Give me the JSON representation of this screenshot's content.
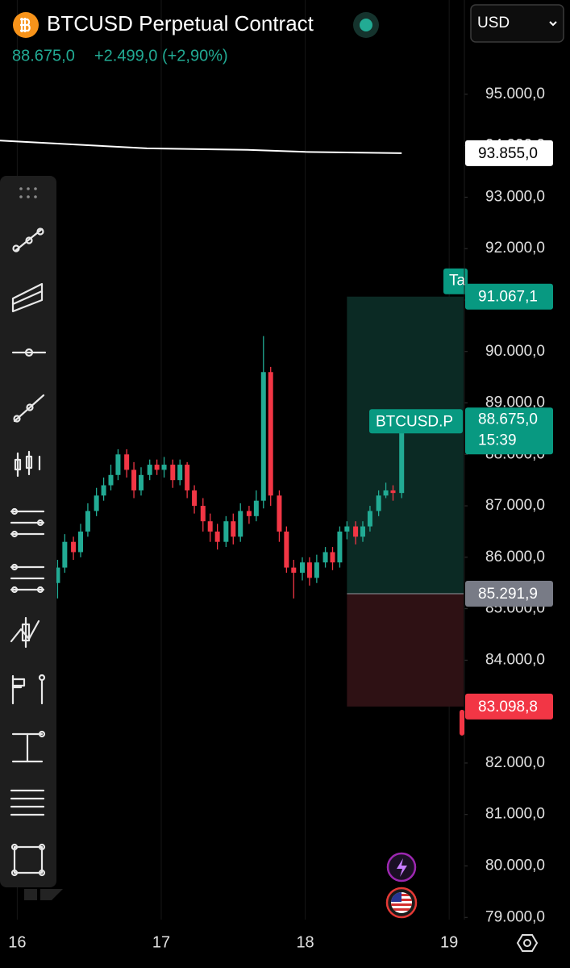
{
  "header": {
    "title": "BTCUSD Perpetual Contract",
    "price": "88.675,0",
    "change": "+2.499,0 (+2,90%)",
    "currency": "USD"
  },
  "chart_data": {
    "type": "candlestick",
    "up_color": "#22ab94",
    "down_color": "#f23645",
    "x": [
      16.28,
      16.33,
      16.39,
      16.44,
      16.49,
      16.55,
      16.6,
      16.65,
      16.7,
      16.76,
      16.81,
      16.86,
      16.92,
      16.97,
      17.02,
      17.08,
      17.13,
      17.18,
      17.23,
      17.29,
      17.34,
      17.39,
      17.45,
      17.5,
      17.55,
      17.61,
      17.66,
      17.71,
      17.76,
      17.82,
      17.87,
      17.92,
      17.98,
      18.03,
      18.08,
      18.14,
      18.19,
      18.24,
      18.29,
      18.35,
      18.4,
      18.45,
      18.51,
      18.56,
      18.61,
      18.67
    ],
    "open": [
      85500,
      85800,
      86300,
      86100,
      86500,
      86900,
      87200,
      87400,
      87600,
      88000,
      87700,
      87300,
      87600,
      87800,
      87700,
      87800,
      87500,
      87800,
      87300,
      87000,
      86700,
      86500,
      86300,
      86700,
      86400,
      86900,
      86800,
      87100,
      89600,
      87200,
      86500,
      85800,
      85700,
      85900,
      85600,
      85900,
      86100,
      85900,
      86500,
      86600,
      86400,
      86600,
      86900,
      87200,
      87300,
      87250
    ],
    "high": [
      85950,
      86450,
      86400,
      86650,
      87050,
      87350,
      87550,
      87800,
      88100,
      88100,
      87850,
      87750,
      87900,
      87900,
      87950,
      87900,
      87900,
      87850,
      87400,
      87150,
      86850,
      86650,
      86800,
      86850,
      87050,
      87000,
      87300,
      90300,
      89700,
      87300,
      86600,
      85950,
      86000,
      86000,
      86050,
      86200,
      86200,
      86600,
      86700,
      86700,
      86700,
      87000,
      87300,
      87450,
      87400,
      88700
    ],
    "low": [
      85200,
      85700,
      85950,
      86000,
      86400,
      86800,
      87100,
      87300,
      87500,
      87550,
      87150,
      87200,
      87500,
      87600,
      87550,
      87350,
      87400,
      87150,
      86850,
      86500,
      86300,
      86150,
      86200,
      86250,
      86300,
      86650,
      86700,
      86950,
      87000,
      86300,
      85700,
      85200,
      85550,
      85450,
      85500,
      85800,
      85750,
      85800,
      86350,
      86250,
      86300,
      86500,
      86800,
      87150,
      87100,
      87150
    ],
    "close": [
      85800,
      86300,
      86100,
      86500,
      86900,
      87200,
      87400,
      87600,
      88000,
      87700,
      87300,
      87600,
      87800,
      87700,
      87800,
      87500,
      87800,
      87300,
      87000,
      86700,
      86500,
      86300,
      86700,
      86400,
      86900,
      86800,
      87100,
      89600,
      87200,
      86500,
      85800,
      85700,
      85900,
      85600,
      85900,
      86100,
      85900,
      86500,
      86600,
      86400,
      86600,
      86900,
      87200,
      87300,
      87250,
      88675
    ],
    "indicator": {
      "color": "#ffffff",
      "x": [
        15.88,
        16.9,
        17.6,
        18.0,
        18.67
      ],
      "values": [
        94100,
        93950,
        93920,
        93880,
        93855
      ]
    },
    "xlim": [
      15.88,
      19.1
    ],
    "xticks": [
      16,
      17,
      18,
      19
    ],
    "ylim": [
      78800,
      95500
    ],
    "yticks": [
      {
        "value": 79000,
        "label": "79.000,0"
      },
      {
        "value": 80000,
        "label": "80.000,0"
      },
      {
        "value": 81000,
        "label": "81.000,0"
      },
      {
        "value": 82000,
        "label": "82.000,0"
      },
      {
        "value": 83000,
        "label": "83.000,0"
      },
      {
        "value": 84000,
        "label": "84.000,0"
      },
      {
        "value": 85000,
        "label": "85.000,0"
      },
      {
        "value": 86000,
        "label": "86.000,0"
      },
      {
        "value": 87000,
        "label": "87.000,0"
      },
      {
        "value": 88000,
        "label": "88.000,0"
      },
      {
        "value": 89000,
        "label": "89.000,0"
      },
      {
        "value": 90000,
        "label": "90.000,0"
      },
      {
        "value": 91000,
        "label": "91.000,0"
      },
      {
        "value": 92000,
        "label": "92.000,0"
      },
      {
        "value": 93000,
        "label": "93.000,0"
      },
      {
        "value": 94000,
        "label": "94.000,0"
      },
      {
        "value": 95000,
        "label": "95.000,0"
      }
    ],
    "grid": "x",
    "position": {
      "x_start": 18.29,
      "take_profit": 91067.1,
      "entry": 85291.9,
      "stop": 83098.8,
      "profit_color": "#0b2a24",
      "loss_color": "#2e1114",
      "tag": "Ta"
    },
    "levels": [
      {
        "value": 93855,
        "label": "93.855,0",
        "color": "#ffffff",
        "text_color": "#000000"
      },
      {
        "value": 91067.1,
        "label": "91.067,1",
        "color": "#089981",
        "text_color": "#ffffff"
      },
      {
        "value": 85291.9,
        "label": "85.291,9",
        "color": "#787b86",
        "text_color": "#ffffff"
      },
      {
        "value": 83098.8,
        "label": "83.098,8",
        "color": "#f23645",
        "text_color": "#ffffff"
      }
    ],
    "last_price": {
      "value": 88675,
      "label": "88.675,0",
      "countdown": "15:39",
      "symbol_tag": "BTCUSD.P",
      "color": "#089981"
    }
  }
}
